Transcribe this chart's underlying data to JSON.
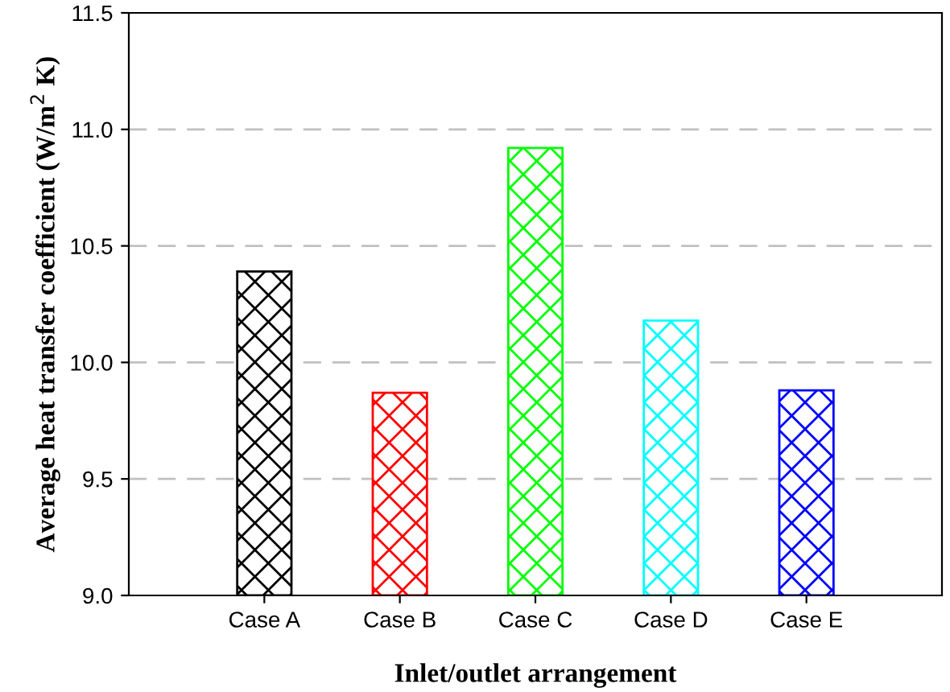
{
  "chart_data": {
    "type": "bar",
    "xlabel": "Inlet/outlet arrangement",
    "ylabel": "Average heat transfer coefficient (W/m$^{2}$ K)",
    "categories": [
      "Case A",
      "Case B",
      "Case C",
      "Case D",
      "Case E"
    ],
    "values": [
      10.39,
      9.87,
      10.92,
      10.18,
      9.88
    ],
    "colors": [
      "#000000",
      "#ff0000",
      "#00ff00",
      "#00ffff",
      "#0000ff"
    ],
    "ylim": [
      9.0,
      11.5
    ],
    "yticks": [
      {
        "value": 9.0,
        "label": "9.0"
      },
      {
        "value": 9.5,
        "label": "9.5"
      },
      {
        "value": 10.0,
        "label": "10.0"
      },
      {
        "value": 10.5,
        "label": "10.5"
      },
      {
        "value": 11.0,
        "label": "11.0"
      },
      {
        "value": 11.5,
        "label": "11.5"
      }
    ],
    "grid": "y"
  }
}
